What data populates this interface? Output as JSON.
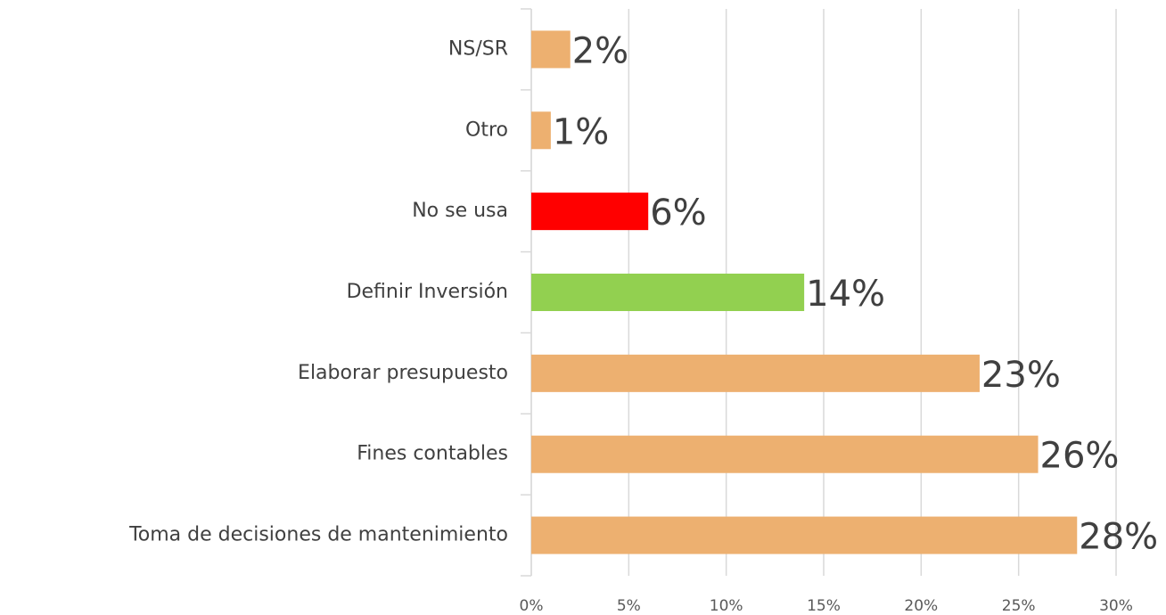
{
  "chart_data": {
    "type": "bar",
    "orientation": "horizontal",
    "categories": [
      "NS/SR",
      "Otro",
      "No se usa",
      "Definir Inversión",
      "Elaborar presupuesto",
      "Fines contables",
      "Toma de decisiones de mantenimiento"
    ],
    "values": [
      2,
      1,
      6,
      14,
      23,
      26,
      28
    ],
    "value_labels": [
      "2%",
      "1%",
      "6%",
      "14%",
      "23%",
      "26%",
      "28%"
    ],
    "colors": [
      "#EDB070",
      "#EDB070",
      "#FF0000",
      "#92D050",
      "#EDB070",
      "#EDB070",
      "#EDB070"
    ],
    "xlim": [
      0,
      30
    ],
    "xticks": [
      {
        "value": 0,
        "label": "0%"
      },
      {
        "value": 5,
        "label": "5%"
      },
      {
        "value": 10,
        "label": "10%"
      },
      {
        "value": 15,
        "label": "15%"
      },
      {
        "value": 20,
        "label": "20%"
      },
      {
        "value": 25,
        "label": "25%"
      },
      {
        "value": 30,
        "label": "30%"
      }
    ],
    "grid": true
  }
}
